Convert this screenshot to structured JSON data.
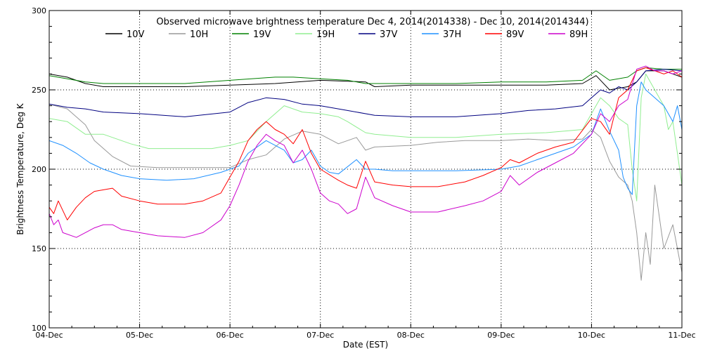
{
  "chart_data": {
    "type": "line",
    "title": "Observed microwave brightness temperature Dec  4, 2014(2014338) - Dec 10, 2014(2014344)",
    "xlabel": "Date (EST)",
    "ylabel": "Brightness Temperature, Deg K",
    "xlim": [
      0,
      7
    ],
    "ylim": [
      100,
      300
    ],
    "x_ticks": [
      {
        "x": 0,
        "label": "04-Dec"
      },
      {
        "x": 1,
        "label": "05-Dec"
      },
      {
        "x": 2,
        "label": "06-Dec"
      },
      {
        "x": 3,
        "label": "07-Dec"
      },
      {
        "x": 4,
        "label": "08-Dec"
      },
      {
        "x": 5,
        "label": "09-Dec"
      },
      {
        "x": 6,
        "label": "10-Dec"
      },
      {
        "x": 7,
        "label": "11-Dec"
      }
    ],
    "y_ticks": [
      {
        "y": 100,
        "label": "100"
      },
      {
        "y": 150,
        "label": "150"
      },
      {
        "y": 200,
        "label": "200"
      },
      {
        "y": 250,
        "label": "250"
      },
      {
        "y": 300,
        "label": "300"
      }
    ],
    "grid": "dotted",
    "legend_position": "top",
    "series": [
      {
        "name": "10V",
        "color": "#000000",
        "points": [
          [
            0,
            260
          ],
          [
            0.2,
            258
          ],
          [
            0.4,
            254
          ],
          [
            0.6,
            252
          ],
          [
            1,
            252
          ],
          [
            1.5,
            252
          ],
          [
            2,
            253
          ],
          [
            2.5,
            254
          ],
          [
            3,
            256
          ],
          [
            3.5,
            255
          ],
          [
            3.6,
            252
          ],
          [
            4,
            253
          ],
          [
            4.5,
            253
          ],
          [
            5,
            253
          ],
          [
            5.5,
            253
          ],
          [
            5.9,
            254
          ],
          [
            6.05,
            259
          ],
          [
            6.2,
            250
          ],
          [
            6.4,
            252
          ],
          [
            6.5,
            255
          ],
          [
            6.6,
            262
          ],
          [
            6.8,
            262
          ],
          [
            7,
            258
          ]
        ]
      },
      {
        "name": "10H",
        "color": "#999999",
        "points": [
          [
            0,
            241
          ],
          [
            0.2,
            238
          ],
          [
            0.4,
            228
          ],
          [
            0.5,
            218
          ],
          [
            0.7,
            208
          ],
          [
            0.9,
            202
          ],
          [
            1.2,
            201
          ],
          [
            1.6,
            201
          ],
          [
            1.8,
            201
          ],
          [
            2,
            201
          ],
          [
            2.2,
            206
          ],
          [
            2.4,
            209
          ],
          [
            2.6,
            219
          ],
          [
            2.8,
            224
          ],
          [
            3,
            222
          ],
          [
            3.2,
            216
          ],
          [
            3.4,
            220
          ],
          [
            3.5,
            212
          ],
          [
            3.6,
            214
          ],
          [
            4,
            215
          ],
          [
            4.3,
            217
          ],
          [
            4.6,
            218
          ],
          [
            5,
            218
          ],
          [
            5.3,
            219
          ],
          [
            5.6,
            218
          ],
          [
            5.9,
            219
          ],
          [
            6,
            225
          ],
          [
            6.1,
            220
          ],
          [
            6.2,
            205
          ],
          [
            6.3,
            195
          ],
          [
            6.4,
            190
          ],
          [
            6.45,
            180
          ],
          [
            6.5,
            160
          ],
          [
            6.55,
            130
          ],
          [
            6.6,
            160
          ],
          [
            6.65,
            140
          ],
          [
            6.7,
            190
          ],
          [
            6.8,
            150
          ],
          [
            6.9,
            165
          ],
          [
            6.95,
            150
          ],
          [
            7,
            135
          ]
        ]
      },
      {
        "name": "19V",
        "color": "#008000",
        "points": [
          [
            0,
            259
          ],
          [
            0.2,
            257
          ],
          [
            0.4,
            255
          ],
          [
            0.6,
            254
          ],
          [
            1,
            254
          ],
          [
            1.5,
            254
          ],
          [
            2,
            256
          ],
          [
            2.5,
            258
          ],
          [
            2.7,
            258
          ],
          [
            3,
            257
          ],
          [
            3.3,
            256
          ],
          [
            3.5,
            254
          ],
          [
            3.6,
            254
          ],
          [
            4,
            254
          ],
          [
            4.5,
            254
          ],
          [
            5,
            255
          ],
          [
            5.5,
            255
          ],
          [
            5.9,
            256
          ],
          [
            6.05,
            262
          ],
          [
            6.2,
            256
          ],
          [
            6.4,
            258
          ],
          [
            6.5,
            262
          ],
          [
            6.6,
            264
          ],
          [
            6.8,
            263
          ],
          [
            7,
            263
          ]
        ]
      },
      {
        "name": "19H",
        "color": "#90EE90",
        "points": [
          [
            0,
            232
          ],
          [
            0.2,
            230
          ],
          [
            0.4,
            222
          ],
          [
            0.6,
            222
          ],
          [
            0.8,
            218
          ],
          [
            0.9,
            216
          ],
          [
            1.1,
            213
          ],
          [
            1.5,
            213
          ],
          [
            1.8,
            213
          ],
          [
            2,
            215
          ],
          [
            2.2,
            218
          ],
          [
            2.4,
            230
          ],
          [
            2.6,
            240
          ],
          [
            2.8,
            236
          ],
          [
            3,
            235
          ],
          [
            3.2,
            233
          ],
          [
            3.3,
            230
          ],
          [
            3.5,
            223
          ],
          [
            3.6,
            222
          ],
          [
            4,
            220
          ],
          [
            4.5,
            220
          ],
          [
            5,
            222
          ],
          [
            5.5,
            223
          ],
          [
            5.9,
            225
          ],
          [
            6,
            235
          ],
          [
            6.1,
            245
          ],
          [
            6.2,
            240
          ],
          [
            6.3,
            232
          ],
          [
            6.4,
            228
          ],
          [
            6.45,
            200
          ],
          [
            6.5,
            180
          ],
          [
            6.55,
            245
          ],
          [
            6.6,
            260
          ],
          [
            6.7,
            250
          ],
          [
            6.8,
            240
          ],
          [
            6.85,
            225
          ],
          [
            6.9,
            230
          ],
          [
            6.95,
            210
          ],
          [
            7,
            190
          ]
        ]
      },
      {
        "name": "37V",
        "color": "#000080",
        "points": [
          [
            0,
            241
          ],
          [
            0.2,
            239
          ],
          [
            0.4,
            238
          ],
          [
            0.6,
            236
          ],
          [
            1,
            235
          ],
          [
            1.5,
            233
          ],
          [
            2,
            236
          ],
          [
            2.2,
            242
          ],
          [
            2.4,
            245
          ],
          [
            2.6,
            244
          ],
          [
            2.8,
            241
          ],
          [
            3,
            240
          ],
          [
            3.3,
            237
          ],
          [
            3.6,
            234
          ],
          [
            4,
            233
          ],
          [
            4.5,
            233
          ],
          [
            5,
            235
          ],
          [
            5.3,
            237
          ],
          [
            5.6,
            238
          ],
          [
            5.9,
            240
          ],
          [
            6,
            245
          ],
          [
            6.1,
            250
          ],
          [
            6.2,
            248
          ],
          [
            6.3,
            252
          ],
          [
            6.4,
            250
          ],
          [
            6.5,
            255
          ],
          [
            6.6,
            262
          ],
          [
            6.8,
            263
          ],
          [
            7,
            262
          ]
        ]
      },
      {
        "name": "37H",
        "color": "#1E90FF",
        "points": [
          [
            0,
            218
          ],
          [
            0.15,
            215
          ],
          [
            0.3,
            210
          ],
          [
            0.45,
            204
          ],
          [
            0.6,
            200
          ],
          [
            0.8,
            196
          ],
          [
            1,
            194
          ],
          [
            1.3,
            193
          ],
          [
            1.6,
            194
          ],
          [
            1.9,
            198
          ],
          [
            2,
            200
          ],
          [
            2.1,
            202
          ],
          [
            2.2,
            210
          ],
          [
            2.4,
            218
          ],
          [
            2.6,
            212
          ],
          [
            2.7,
            204
          ],
          [
            2.8,
            206
          ],
          [
            2.9,
            212
          ],
          [
            3,
            202
          ],
          [
            3.1,
            198
          ],
          [
            3.2,
            197
          ],
          [
            3.4,
            206
          ],
          [
            3.5,
            200
          ],
          [
            3.6,
            200
          ],
          [
            3.8,
            199
          ],
          [
            4,
            199
          ],
          [
            4.5,
            199
          ],
          [
            5,
            200
          ],
          [
            5.2,
            202
          ],
          [
            5.4,
            206
          ],
          [
            5.6,
            210
          ],
          [
            5.8,
            214
          ],
          [
            6,
            222
          ],
          [
            6.1,
            238
          ],
          [
            6.2,
            224
          ],
          [
            6.3,
            212
          ],
          [
            6.35,
            195
          ],
          [
            6.4,
            188
          ],
          [
            6.45,
            184
          ],
          [
            6.5,
            240
          ],
          [
            6.55,
            255
          ],
          [
            6.6,
            250
          ],
          [
            6.7,
            245
          ],
          [
            6.8,
            240
          ],
          [
            6.9,
            230
          ],
          [
            6.95,
            240
          ],
          [
            7,
            225
          ]
        ]
      },
      {
        "name": "89V",
        "color": "#FF0000",
        "points": [
          [
            0,
            176
          ],
          [
            0.05,
            172
          ],
          [
            0.1,
            180
          ],
          [
            0.2,
            168
          ],
          [
            0.3,
            176
          ],
          [
            0.4,
            182
          ],
          [
            0.5,
            186
          ],
          [
            0.7,
            188
          ],
          [
            0.8,
            183
          ],
          [
            1,
            180
          ],
          [
            1.2,
            178
          ],
          [
            1.5,
            178
          ],
          [
            1.7,
            180
          ],
          [
            1.9,
            185
          ],
          [
            2,
            195
          ],
          [
            2.1,
            205
          ],
          [
            2.2,
            218
          ],
          [
            2.3,
            225
          ],
          [
            2.4,
            230
          ],
          [
            2.5,
            225
          ],
          [
            2.6,
            222
          ],
          [
            2.7,
            216
          ],
          [
            2.8,
            225
          ],
          [
            2.9,
            210
          ],
          [
            3,
            200
          ],
          [
            3.2,
            193
          ],
          [
            3.3,
            190
          ],
          [
            3.4,
            188
          ],
          [
            3.5,
            205
          ],
          [
            3.6,
            192
          ],
          [
            3.8,
            190
          ],
          [
            4,
            189
          ],
          [
            4.3,
            189
          ],
          [
            4.6,
            192
          ],
          [
            4.8,
            196
          ],
          [
            5,
            201
          ],
          [
            5.1,
            206
          ],
          [
            5.2,
            204
          ],
          [
            5.4,
            210
          ],
          [
            5.6,
            214
          ],
          [
            5.8,
            217
          ],
          [
            6,
            232
          ],
          [
            6.1,
            230
          ],
          [
            6.2,
            222
          ],
          [
            6.3,
            245
          ],
          [
            6.4,
            250
          ],
          [
            6.5,
            262
          ],
          [
            6.6,
            264
          ],
          [
            6.7,
            262
          ],
          [
            6.8,
            260
          ],
          [
            6.9,
            262
          ],
          [
            7,
            258
          ]
        ]
      },
      {
        "name": "89H",
        "color": "#CC00CC",
        "points": [
          [
            0,
            172
          ],
          [
            0.05,
            165
          ],
          [
            0.1,
            168
          ],
          [
            0.15,
            160
          ],
          [
            0.3,
            157
          ],
          [
            0.5,
            163
          ],
          [
            0.6,
            165
          ],
          [
            0.7,
            165
          ],
          [
            0.8,
            162
          ],
          [
            1,
            160
          ],
          [
            1.2,
            158
          ],
          [
            1.5,
            157
          ],
          [
            1.7,
            160
          ],
          [
            1.9,
            168
          ],
          [
            2,
            177
          ],
          [
            2.1,
            190
          ],
          [
            2.2,
            205
          ],
          [
            2.3,
            215
          ],
          [
            2.4,
            222
          ],
          [
            2.5,
            218
          ],
          [
            2.6,
            215
          ],
          [
            2.7,
            204
          ],
          [
            2.8,
            212
          ],
          [
            2.9,
            200
          ],
          [
            3,
            185
          ],
          [
            3.1,
            180
          ],
          [
            3.2,
            178
          ],
          [
            3.3,
            172
          ],
          [
            3.4,
            175
          ],
          [
            3.5,
            195
          ],
          [
            3.6,
            182
          ],
          [
            3.8,
            177
          ],
          [
            4,
            173
          ],
          [
            4.3,
            173
          ],
          [
            4.6,
            177
          ],
          [
            4.8,
            180
          ],
          [
            5,
            186
          ],
          [
            5.1,
            196
          ],
          [
            5.2,
            190
          ],
          [
            5.4,
            198
          ],
          [
            5.6,
            204
          ],
          [
            5.8,
            210
          ],
          [
            6,
            222
          ],
          [
            6.1,
            235
          ],
          [
            6.2,
            230
          ],
          [
            6.3,
            240
          ],
          [
            6.4,
            244
          ],
          [
            6.5,
            263
          ],
          [
            6.6,
            265
          ],
          [
            6.7,
            262
          ],
          [
            6.8,
            262
          ],
          [
            6.9,
            260
          ],
          [
            7,
            262
          ]
        ]
      }
    ]
  }
}
